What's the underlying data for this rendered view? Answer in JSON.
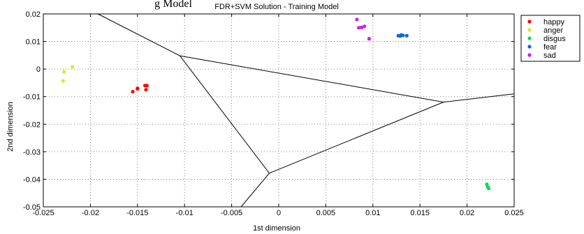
{
  "chart_data": {
    "type": "scatter",
    "cut_off_heading": "g Model",
    "title": "FDR+SVM Solution - Training Model",
    "xlabel": "1st dimension",
    "ylabel": "2nd dimension",
    "xlim": [
      -0.025,
      0.025
    ],
    "ylim": [
      -0.05,
      0.02
    ],
    "grid": true,
    "legend_position": "outside-right",
    "x_ticks": [
      -0.025,
      -0.02,
      -0.015,
      -0.01,
      -0.005,
      0,
      0.005,
      0.01,
      0.015,
      0.02,
      0.025
    ],
    "x_tick_labels": [
      "-0.025",
      "-0.02",
      "-0.015",
      "-0.01",
      "-0.005",
      "0",
      "0.005",
      "0.01",
      "0.015",
      "0.02",
      "0.025"
    ],
    "y_ticks": [
      0.02,
      0.01,
      0,
      -0.01,
      -0.02,
      -0.03,
      -0.04,
      -0.05
    ],
    "y_tick_labels": [
      "0.02",
      "0.01",
      "0",
      "-0.01",
      "-0.02",
      "-0.03",
      "-0.04",
      "-0.05"
    ],
    "series": [
      {
        "name": "happy",
        "color": "#ff0000",
        "points": [
          [
            -0.0155,
            -0.0082
          ],
          [
            -0.015,
            -0.007
          ],
          [
            -0.0142,
            -0.006
          ],
          [
            -0.014,
            -0.006
          ],
          [
            -0.0141,
            -0.0075
          ],
          [
            -0.015,
            -0.0072
          ]
        ]
      },
      {
        "name": "anger",
        "color": "#ccee33",
        "points": [
          [
            -0.0228,
            -0.001
          ],
          [
            -0.0219,
            0.0008
          ],
          [
            -0.0229,
            -0.0043
          ]
        ]
      },
      {
        "name": "disgus",
        "color": "#00dd55",
        "points": [
          [
            0.0221,
            -0.0418
          ],
          [
            0.0222,
            -0.0428
          ],
          [
            0.0223,
            -0.0433
          ]
        ]
      },
      {
        "name": "fear",
        "color": "#1166dd",
        "points": [
          [
            0.0127,
            0.0121
          ],
          [
            0.013,
            0.0124
          ],
          [
            0.0129,
            0.012
          ],
          [
            0.0136,
            0.0121
          ],
          [
            0.0132,
            0.0122
          ]
        ]
      },
      {
        "name": "sad",
        "color": "#cc22dd",
        "points": [
          [
            0.0083,
            0.018
          ],
          [
            0.0085,
            0.015
          ],
          [
            0.0088,
            0.0151
          ],
          [
            0.0091,
            0.0155
          ],
          [
            0.0096,
            0.011
          ]
        ]
      }
    ],
    "boundaries": [
      {
        "name": "boundary-1",
        "points": [
          [
            -0.0192,
            0.02
          ],
          [
            -0.0105,
            0.0048
          ]
        ]
      },
      {
        "name": "boundary-2",
        "points": [
          [
            -0.0105,
            0.0048
          ],
          [
            -0.001,
            -0.0378
          ]
        ]
      },
      {
        "name": "boundary-3",
        "points": [
          [
            -0.0105,
            0.0048
          ],
          [
            0.0175,
            -0.012
          ]
        ]
      },
      {
        "name": "boundary-4",
        "points": [
          [
            -0.001,
            -0.0378
          ],
          [
            0.0175,
            -0.012
          ]
        ]
      },
      {
        "name": "boundary-5",
        "points": [
          [
            -0.001,
            -0.0378
          ],
          [
            -0.004,
            -0.05
          ]
        ]
      },
      {
        "name": "boundary-6",
        "points": [
          [
            0.0175,
            -0.012
          ],
          [
            0.025,
            -0.009
          ]
        ]
      }
    ]
  }
}
